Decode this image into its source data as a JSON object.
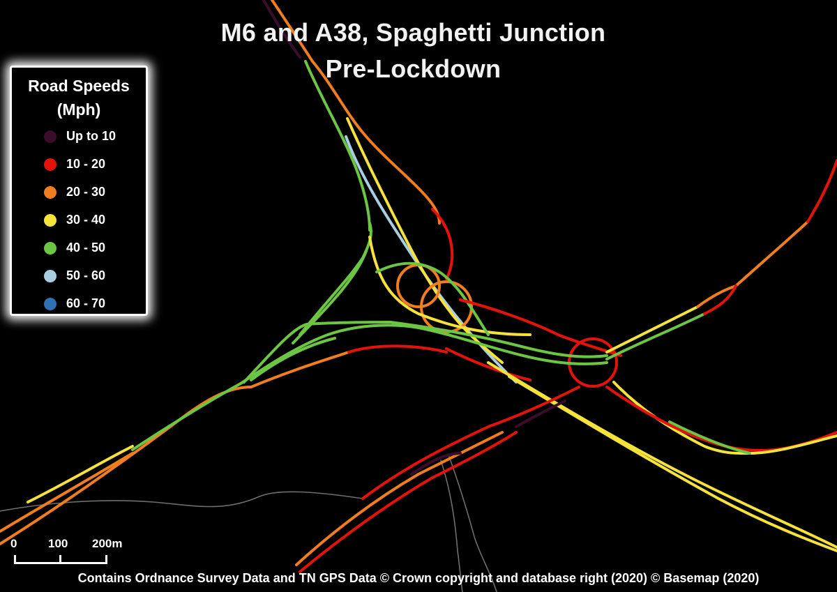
{
  "title": {
    "line1": "M6 and A38, Spaghetti Junction",
    "line2": "Pre-Lockdown"
  },
  "legend": {
    "title_line1": "Road Speeds",
    "title_line2": "(Mph)",
    "items": [
      {
        "label": "Up to 10",
        "color": "#3a0d2b"
      },
      {
        "label": "10 - 20",
        "color": "#e3120b"
      },
      {
        "label": "20 - 30",
        "color": "#f07e1e"
      },
      {
        "label": "30 - 40",
        "color": "#f5e23a"
      },
      {
        "label": "40 - 50",
        "color": "#6cc644"
      },
      {
        "label": "50 - 60",
        "color": "#a9cde3"
      },
      {
        "label": "60 - 70",
        "color": "#2f72b3"
      }
    ]
  },
  "scalebar": {
    "labels": [
      "0",
      "100",
      "200m"
    ]
  },
  "credit": "Contains Ordnance Survey Data and TN GPS Data © Crown copyright and database right (2020) © Basemap (2020)",
  "colors": {
    "background": "#000000",
    "minor_road": "#6e6e6e"
  }
}
